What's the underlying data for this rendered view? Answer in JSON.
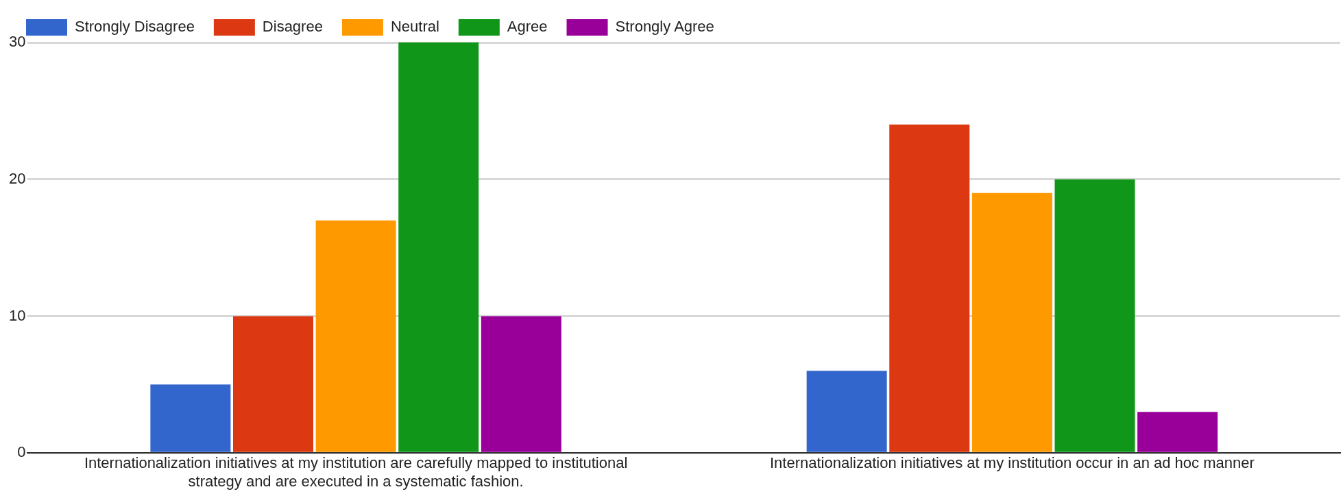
{
  "chart_data": {
    "type": "bar",
    "categories": [
      "Internationalization initiatives at my institution are carefully mapped to institutional strategy and are executed in a systematic fashion.",
      "Internationalization initiatives at my institution occur in an ad hoc manner"
    ],
    "series": [
      {
        "name": "Strongly Disagree",
        "color": "#3366cc",
        "values": [
          5,
          6
        ]
      },
      {
        "name": "Disagree",
        "color": "#dc3912",
        "values": [
          10,
          24
        ]
      },
      {
        "name": "Neutral",
        "color": "#ff9900",
        "values": [
          17,
          19
        ]
      },
      {
        "name": "Agree",
        "color": "#109618",
        "values": [
          30,
          20
        ]
      },
      {
        "name": "Strongly Agree",
        "color": "#990099",
        "values": [
          10,
          3
        ]
      }
    ],
    "ylim": [
      0,
      30
    ],
    "yticks": [
      0,
      10,
      20,
      30
    ],
    "grid": "y",
    "legend": "top left"
  }
}
